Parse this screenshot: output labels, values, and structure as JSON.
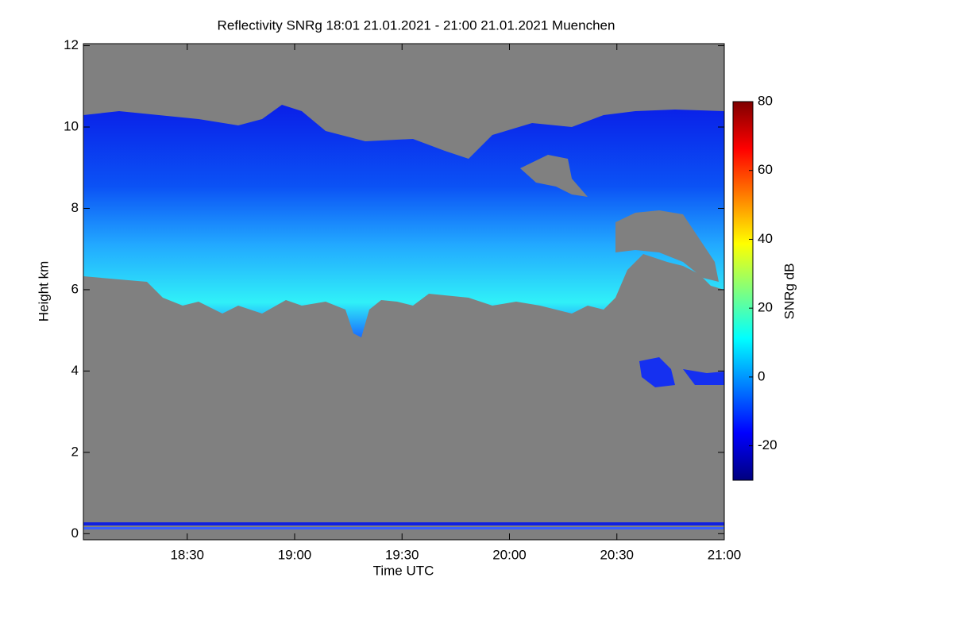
{
  "chart_data": {
    "type": "heatmap",
    "title": "Reflectivity SNRg   18:01 21.01.2021 - 21:00 21.01.2021 Muenchen",
    "xlabel": "Time UTC",
    "ylabel": "Height km",
    "xlim": [
      1081,
      1260
    ],
    "xticks": [
      {
        "value": 1110,
        "label": "18:30"
      },
      {
        "value": 1140,
        "label": "19:00"
      },
      {
        "value": 1170,
        "label": "19:30"
      },
      {
        "value": 1200,
        "label": "20:00"
      },
      {
        "value": 1230,
        "label": "20:30"
      },
      {
        "value": 1260,
        "label": "21:00"
      }
    ],
    "ylim": [
      -0.15,
      12.05
    ],
    "yticks": [
      0,
      2,
      4,
      6,
      8,
      10,
      12
    ],
    "colorbar_label": "SNRg dB",
    "clim": [
      -30,
      80
    ],
    "cticks": [
      -20,
      0,
      20,
      40,
      60,
      80
    ],
    "colormap": [
      "#00007f",
      "#0000ff",
      "#007fff",
      "#00ffff",
      "#7fff7f",
      "#ffff00",
      "#ff7f00",
      "#ff0000",
      "#7f0000"
    ],
    "background": "#808080"
  }
}
